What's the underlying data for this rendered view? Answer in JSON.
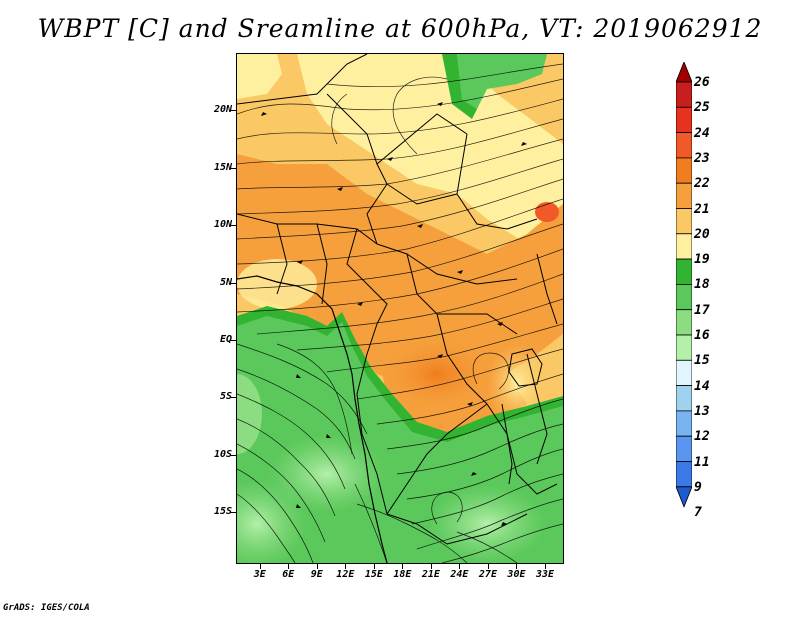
{
  "title": "WBPT [C] and Sreamline at 600hPa, VT: 2019062912",
  "footer": "GrADS: IGES/COLA",
  "map": {
    "lat_labels": [
      "20N",
      "15N",
      "10N",
      "5N",
      "EQ",
      "5S",
      "10S",
      "15S"
    ],
    "lat_values": [
      20,
      15,
      10,
      5,
      0,
      -5,
      -10,
      -15
    ],
    "lon_labels": [
      "3E",
      "6E",
      "9E",
      "12E",
      "15E",
      "18E",
      "21E",
      "24E",
      "27E",
      "30E",
      "33E"
    ],
    "lon_values": [
      3,
      6,
      9,
      12,
      15,
      18,
      21,
      24,
      27,
      30,
      33
    ],
    "lon_range": [
      0.5,
      35
    ],
    "lat_range": [
      -19.5,
      25
    ]
  },
  "colorbar": {
    "levels": [
      "26",
      "25",
      "24",
      "23",
      "22",
      "21",
      "20",
      "19",
      "18",
      "17",
      "16",
      "15",
      "14",
      "13",
      "12",
      "11",
      "9",
      "7"
    ],
    "colors": [
      "#a00000",
      "#c81e1e",
      "#e6321e",
      "#f05a28",
      "#f07d1e",
      "#f5a03c",
      "#fac864",
      "#fff0a0",
      "#32b432",
      "#5ac85a",
      "#8cdc82",
      "#b4f0aa",
      "#e1f5ff",
      "#a0d2f0",
      "#78b4f0",
      "#5a96f0",
      "#3c78e6",
      "#1e5ad2"
    ]
  }
}
